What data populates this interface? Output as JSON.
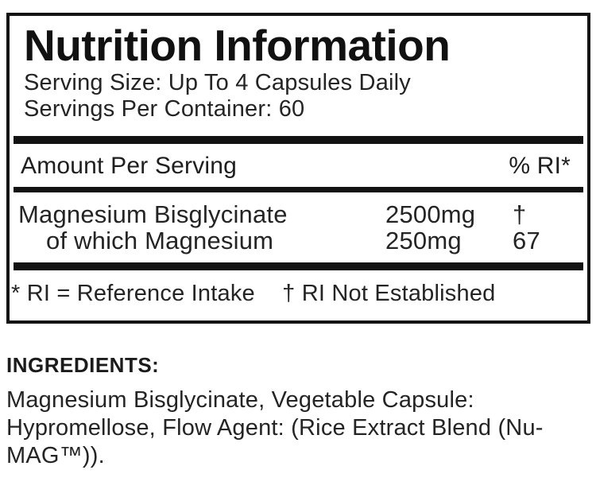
{
  "panel": {
    "title": "Nutrition Information",
    "serving_size": "Serving Size: Up To 4 Capsules Daily",
    "servings_per_container": "Servings Per Container: 60",
    "header": {
      "amount_label": "Amount Per Serving",
      "ri_label": "% RI*"
    },
    "rows": [
      {
        "name": "Magnesium Bisglycinate",
        "amount": "2500mg",
        "ri": "†"
      },
      {
        "name": "of which Magnesium",
        "amount": "250mg",
        "ri": "67"
      }
    ],
    "footnote_reference": "* RI = Reference Intake",
    "footnote_not_established": "† RI Not Established"
  },
  "ingredients": {
    "heading": "INGREDIENTS:",
    "text": "Magnesium Bisglycinate, Vegetable Capsule: Hypromellose, Flow Agent: (Rice Extract Blend (Nu-MAG™))."
  },
  "colors": {
    "background": "#ffffff",
    "text": "#242424",
    "rule": "#121212"
  }
}
